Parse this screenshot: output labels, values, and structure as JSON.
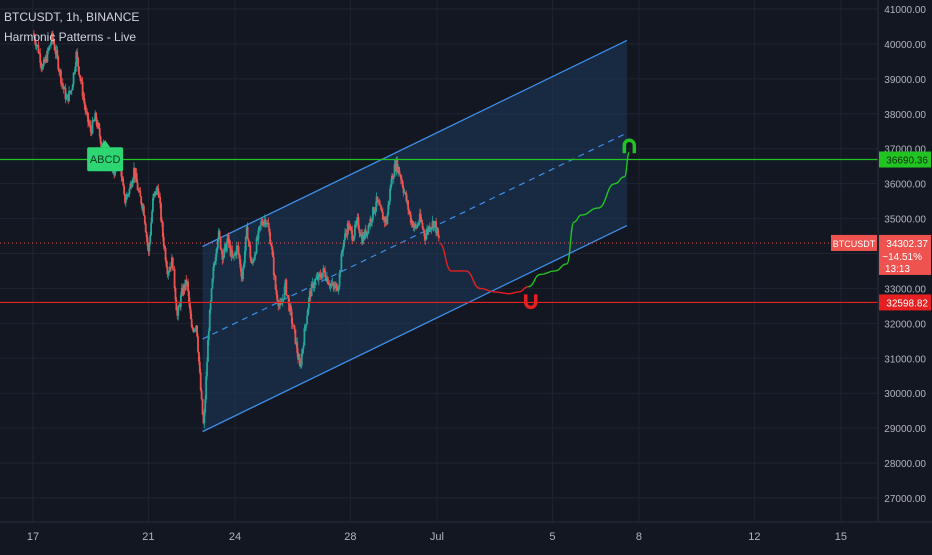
{
  "header": {
    "symbol_line": "BTCUSDT, 1h, BINANCE",
    "indicator": "Harmonic Patterns - Live"
  },
  "colors": {
    "background": "#131722",
    "candle_up": "#26a69a",
    "candle_down": "#ef5350",
    "channel": "#3d8ee8",
    "channel_fill": "#1b3a5c",
    "resistance": "#22c422",
    "support": "#e62020",
    "axis_text": "#b2b5be"
  },
  "chart_data": {
    "type": "candlestick",
    "y_axis": {
      "min": 26500,
      "max": 41200,
      "ticks": [
        "41000.00",
        "40000.00",
        "39000.00",
        "38000.00",
        "37000.00",
        "36000.00",
        "35000.00",
        "34000.00",
        "33000.00",
        "32000.00",
        "31000.00",
        "30000.00",
        "29000.00",
        "28000.00",
        "27000.00"
      ]
    },
    "x_axis": {
      "ticks": [
        {
          "label": "17",
          "pos": 0
        },
        {
          "label": "21",
          "pos": 96
        },
        {
          "label": "24",
          "pos": 168
        },
        {
          "label": "28",
          "pos": 264
        },
        {
          "label": "Jul",
          "pos": 336
        },
        {
          "label": "5",
          "pos": 432
        },
        {
          "label": "8",
          "pos": 504
        },
        {
          "label": "12",
          "pos": 600
        },
        {
          "label": "15",
          "pos": 672
        }
      ]
    },
    "price_path": [
      [
        0,
        40300
      ],
      [
        4,
        39900
      ],
      [
        8,
        39300
      ],
      [
        12,
        39700
      ],
      [
        16,
        40200
      ],
      [
        20,
        39600
      ],
      [
        24,
        38900
      ],
      [
        28,
        38400
      ],
      [
        32,
        38700
      ],
      [
        36,
        39700
      ],
      [
        40,
        38900
      ],
      [
        44,
        38000
      ],
      [
        48,
        37500
      ],
      [
        52,
        37900
      ],
      [
        56,
        37300
      ],
      [
        60,
        37000
      ],
      [
        64,
        36700
      ],
      [
        68,
        36300
      ],
      [
        72,
        36800
      ],
      [
        76,
        35500
      ],
      [
        80,
        35800
      ],
      [
        84,
        36400
      ],
      [
        88,
        35700
      ],
      [
        92,
        35300
      ],
      [
        96,
        34000
      ],
      [
        100,
        35600
      ],
      [
        104,
        35900
      ],
      [
        108,
        34500
      ],
      [
        112,
        33500
      ],
      [
        116,
        33800
      ],
      [
        120,
        32200
      ],
      [
        124,
        32900
      ],
      [
        128,
        33200
      ],
      [
        132,
        31800
      ],
      [
        136,
        32000
      ],
      [
        140,
        29800
      ],
      [
        142,
        29000
      ],
      [
        146,
        31800
      ],
      [
        150,
        33500
      ],
      [
        154,
        34600
      ],
      [
        158,
        33900
      ],
      [
        162,
        34400
      ],
      [
        166,
        33800
      ],
      [
        170,
        34200
      ],
      [
        174,
        33300
      ],
      [
        178,
        34700
      ],
      [
        182,
        33600
      ],
      [
        186,
        34300
      ],
      [
        190,
        34900
      ],
      [
        194,
        35000
      ],
      [
        198,
        34300
      ],
      [
        202,
        32900
      ],
      [
        206,
        32400
      ],
      [
        210,
        33100
      ],
      [
        214,
        32300
      ],
      [
        218,
        31600
      ],
      [
        222,
        30700
      ],
      [
        226,
        31800
      ],
      [
        230,
        32800
      ],
      [
        234,
        33200
      ],
      [
        238,
        33300
      ],
      [
        242,
        33500
      ],
      [
        246,
        33200
      ],
      [
        250,
        33000
      ],
      [
        254,
        33100
      ],
      [
        258,
        34300
      ],
      [
        262,
        34800
      ],
      [
        266,
        34500
      ],
      [
        270,
        34900
      ],
      [
        274,
        34400
      ],
      [
        278,
        34700
      ],
      [
        282,
        35100
      ],
      [
        286,
        35500
      ],
      [
        290,
        35100
      ],
      [
        294,
        34900
      ],
      [
        298,
        36100
      ],
      [
        302,
        36600
      ],
      [
        306,
        36200
      ],
      [
        310,
        35600
      ],
      [
        314,
        35000
      ],
      [
        318,
        34700
      ],
      [
        322,
        35000
      ],
      [
        326,
        34500
      ],
      [
        330,
        34800
      ],
      [
        334,
        34900
      ],
      [
        338,
        34300
      ]
    ],
    "last_price": 34302.37,
    "last_price_label": "34302.37",
    "change_label": "−14.51%",
    "countdown_label": "13:13",
    "symbol_tag": "BTCUSDT",
    "resistance": {
      "value": 36690.36,
      "label": "36690.36"
    },
    "support": {
      "value": 32598.82,
      "label": "32598.82"
    },
    "channel": {
      "start": {
        "pos": 141,
        "lower": 28900,
        "upper": 34200
      },
      "end": {
        "pos": 494,
        "lower": 34800,
        "upper": 40100
      }
    },
    "projection_down": [
      [
        338,
        34300
      ],
      [
        348,
        33500
      ],
      [
        360,
        33500
      ],
      [
        372,
        33000
      ],
      [
        384,
        32900
      ],
      [
        396,
        32850
      ],
      [
        404,
        32900
      ],
      [
        412,
        33050
      ]
    ],
    "projection_up": [
      [
        412,
        33050
      ],
      [
        422,
        33400
      ],
      [
        434,
        33500
      ],
      [
        444,
        33700
      ],
      [
        450,
        34900
      ],
      [
        456,
        35100
      ],
      [
        470,
        35300
      ],
      [
        484,
        36000
      ],
      [
        492,
        36200
      ],
      [
        496,
        36900
      ]
    ],
    "marker_low": {
      "pos": 414,
      "value": 32600
    },
    "marker_high": {
      "pos": 496,
      "value": 37100
    },
    "pattern_label": {
      "text": "ABCD",
      "pos": 60,
      "value": 36700
    }
  }
}
